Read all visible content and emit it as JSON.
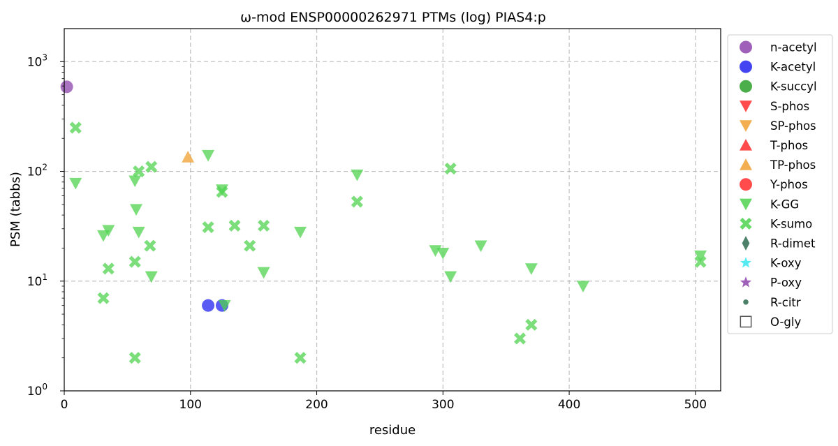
{
  "chart_data": {
    "type": "scatter",
    "title": "ω-mod ENSP00000262971 PTMs (log) PIAS4:p",
    "xlabel": "residue",
    "ylabel": "PSM (tabbs)",
    "xlim": [
      0,
      520
    ],
    "ylim": [
      1,
      2000
    ],
    "yscale": "log",
    "grid": true,
    "legend_position": "outside-right",
    "x_ticks": [
      "0",
      "100",
      "200",
      "300",
      "400",
      "500"
    ],
    "x_tick_values": [
      0,
      100,
      200,
      300,
      400,
      500
    ],
    "y_ticks": [
      {
        "base": "10",
        "exp": "0",
        "value": 1
      },
      {
        "base": "10",
        "exp": "1",
        "value": 10
      },
      {
        "base": "10",
        "exp": "2",
        "value": 100
      },
      {
        "base": "10",
        "exp": "3",
        "value": 1000
      }
    ],
    "series": [
      {
        "name": "n-acetyl",
        "marker": "circle",
        "color": "#8e44ad",
        "points": [
          [
            2,
            590
          ]
        ]
      },
      {
        "name": "K-acetyl",
        "marker": "circle",
        "color": "#2323f0",
        "points": [
          [
            114,
            6
          ],
          [
            125,
            6
          ]
        ]
      },
      {
        "name": "K-succyl",
        "marker": "circle",
        "color": "#2ca02c",
        "points": []
      },
      {
        "name": "S-phos",
        "marker": "triangle-down",
        "color": "#ff2b2b",
        "points": []
      },
      {
        "name": "SP-phos",
        "marker": "triangle-down",
        "color": "#f0a030",
        "points": []
      },
      {
        "name": "T-phos",
        "marker": "triangle-up",
        "color": "#ff2b2b",
        "points": []
      },
      {
        "name": "TP-phos",
        "marker": "triangle-up",
        "color": "#f0a030",
        "points": [
          [
            98,
            135
          ]
        ]
      },
      {
        "name": "Y-phos",
        "marker": "circle",
        "color": "#ff2b2b",
        "points": []
      },
      {
        "name": "K-GG",
        "marker": "triangle-down",
        "color": "#4fd34f",
        "points": [
          [
            9,
            78
          ],
          [
            31,
            26
          ],
          [
            35,
            29
          ],
          [
            56,
            82
          ],
          [
            57,
            45
          ],
          [
            59,
            28
          ],
          [
            69,
            11
          ],
          [
            114,
            140
          ],
          [
            125,
            68
          ],
          [
            127,
            6
          ],
          [
            158,
            12
          ],
          [
            187,
            28
          ],
          [
            232,
            93
          ],
          [
            294,
            19
          ],
          [
            300,
            18
          ],
          [
            306,
            11
          ],
          [
            330,
            21
          ],
          [
            370,
            13
          ],
          [
            411,
            9
          ],
          [
            504,
            17
          ]
        ]
      },
      {
        "name": "K-sumo",
        "marker": "x",
        "color": "#4fd34f",
        "points": [
          [
            9,
            250
          ],
          [
            31,
            7
          ],
          [
            35,
            13
          ],
          [
            56,
            15
          ],
          [
            56,
            2
          ],
          [
            59,
            100
          ],
          [
            68,
            21
          ],
          [
            69,
            110
          ],
          [
            114,
            31
          ],
          [
            125,
            65
          ],
          [
            135,
            32
          ],
          [
            147,
            21
          ],
          [
            158,
            32
          ],
          [
            187,
            2
          ],
          [
            232,
            53
          ],
          [
            306,
            106
          ],
          [
            361,
            3
          ],
          [
            370,
            4
          ],
          [
            504,
            15
          ]
        ]
      },
      {
        "name": "R-dimet",
        "marker": "diamond",
        "color": "#2f6b4f",
        "points": []
      },
      {
        "name": "K-oxy",
        "marker": "star",
        "color": "#38e8f0",
        "points": []
      },
      {
        "name": "P-oxy",
        "marker": "star",
        "color": "#8e44ad",
        "points": []
      },
      {
        "name": "R-citr",
        "marker": "dot",
        "color": "#2f6b4f",
        "points": []
      },
      {
        "name": "O-gly",
        "marker": "square-open",
        "color": "#555555",
        "points": []
      }
    ]
  }
}
